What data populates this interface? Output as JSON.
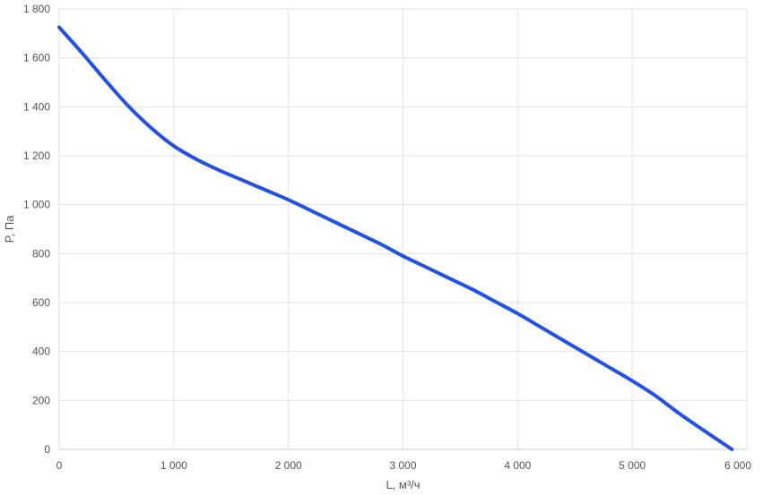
{
  "chart_data": {
    "type": "line",
    "xlabel": "L, м³/ч",
    "ylabel": "P, Па",
    "xlim": [
      0,
      6000
    ],
    "ylim": [
      0,
      1800
    ],
    "x_ticks": [
      0,
      1000,
      2000,
      3000,
      4000,
      5000,
      6000
    ],
    "x_tick_labels": [
      "0",
      "1 000",
      "2 000",
      "3 000",
      "4 000",
      "5 000",
      "6 000"
    ],
    "y_ticks": [
      0,
      200,
      400,
      600,
      800,
      1000,
      1200,
      1400,
      1600,
      1800
    ],
    "y_tick_labels": [
      "0",
      "200",
      "400",
      "600",
      "800",
      "1 000",
      "1 200",
      "1 400",
      "1 600",
      "1 800"
    ],
    "grid": true,
    "series": [
      {
        "color": "#2350e6",
        "x": [
          0,
          200,
          400,
          600,
          800,
          1000,
          1200,
          1400,
          1600,
          1800,
          2000,
          2200,
          2400,
          2600,
          2800,
          3000,
          3200,
          3400,
          3600,
          3800,
          4000,
          4200,
          4400,
          4600,
          4800,
          5000,
          5200,
          5400,
          5600,
          5870
        ],
        "y": [
          1725,
          1620,
          1510,
          1405,
          1315,
          1240,
          1185,
          1140,
          1100,
          1060,
          1020,
          975,
          930,
          885,
          840,
          790,
          745,
          700,
          655,
          605,
          555,
          500,
          445,
          390,
          335,
          280,
          220,
          150,
          85,
          0
        ]
      }
    ]
  }
}
